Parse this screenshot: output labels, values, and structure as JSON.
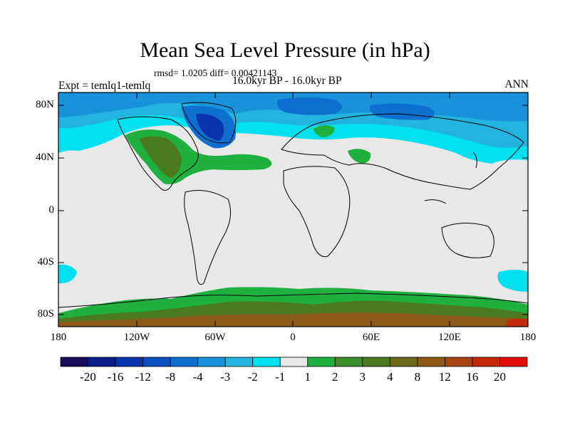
{
  "title": "Mean Sea Level Pressure (in hPa)",
  "stats": "rmsd= 1.0205 diff= 0.00421143",
  "experiment": "Expt = temlq1-temlq",
  "period": "16.0kyr BP - 16.0kyr BP",
  "season": "ANN",
  "lat_labels": [
    "80N",
    "40N",
    "0",
    "40S",
    "80S"
  ],
  "lon_labels": [
    "180",
    "120W",
    "60W",
    "0",
    "60E",
    "120E",
    "180"
  ],
  "colorbar": {
    "colors": [
      "#1a0a5c",
      "#0b1d8a",
      "#0a33b0",
      "#0a4fbf",
      "#0f6fd0",
      "#1892d8",
      "#22b3e0",
      "#00e0ee",
      "#e8e8e8",
      "#20b040",
      "#3c8c2c",
      "#4a7a22",
      "#6a6a18",
      "#8a5a16",
      "#a84410",
      "#c42a08",
      "#e00e06"
    ],
    "labels": [
      "-20",
      "-16",
      "-12",
      "-8",
      "-4",
      "-3",
      "-2",
      "-1",
      "1",
      "2",
      "3",
      "4",
      "8",
      "12",
      "16",
      "20"
    ]
  }
}
